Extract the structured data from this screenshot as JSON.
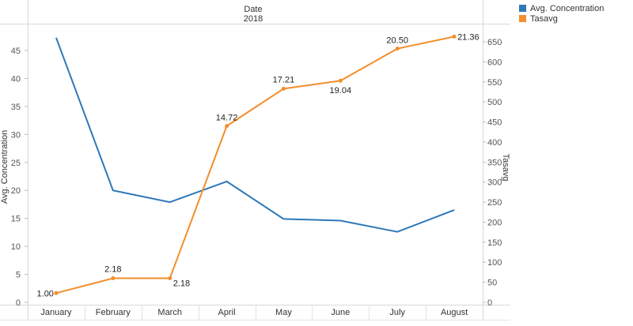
{
  "header": {
    "field": "Date",
    "year": "2018"
  },
  "legend": {
    "items": [
      {
        "label": "Avg. Concentration",
        "color": "#2e78b8"
      },
      {
        "label": "Tasavg",
        "color": "#f28e2b"
      }
    ]
  },
  "chart_data": {
    "type": "line",
    "categories": [
      "January",
      "February",
      "March",
      "April",
      "May",
      "June",
      "July",
      "August"
    ],
    "series": [
      {
        "name": "Avg. Concentration",
        "axis": "left",
        "color": "#2e78b8",
        "values": [
          47.3,
          20.0,
          17.9,
          21.6,
          14.9,
          14.6,
          12.6,
          16.5
        ]
      },
      {
        "name": "Tasavg",
        "axis": "right",
        "color": "#f28e2b",
        "values": [
          23,
          60,
          60,
          440,
          533,
          553,
          633,
          663
        ],
        "data_labels": [
          "1.00",
          "2.18",
          "2.18",
          "14.72",
          "17.21",
          "19.04",
          "20.50",
          "21.36"
        ]
      }
    ],
    "ylabel_left": "Avg. Concentration",
    "ylabel_right": "Tasavg",
    "ylim_left": [
      0,
      50
    ],
    "yticks_left": [
      0,
      5,
      10,
      15,
      20,
      25,
      30,
      35,
      40,
      45
    ],
    "ylim_right": [
      0,
      690
    ],
    "yticks_right": [
      0,
      50,
      100,
      150,
      200,
      250,
      300,
      350,
      400,
      450,
      500,
      550,
      600,
      650
    ],
    "grid": false,
    "legend_position": "top-right"
  }
}
